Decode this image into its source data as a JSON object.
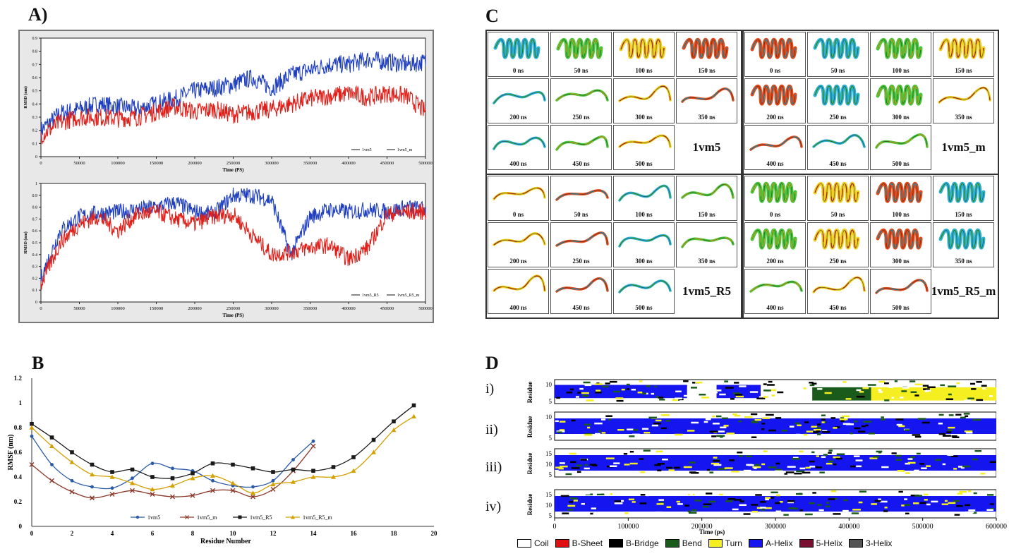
{
  "labels": {
    "A": "A)",
    "B": "B",
    "C": "C",
    "D": "D"
  },
  "colors": {
    "blue": "#1f3fbf",
    "red": "#e0201a",
    "brown": "#8b3a2a",
    "black": "#1a1a1a",
    "gold": "#d4a000",
    "steel": "#2a5aa8"
  },
  "chart_data": [
    {
      "type": "line",
      "title": "",
      "xlabel": "Time (PS)",
      "ylabel": "RMSD (nm)",
      "xlim": [
        0,
        500000
      ],
      "ylim": [
        0,
        0.9
      ],
      "xticks": [
        "0",
        "50000",
        "100000",
        "150000",
        "200000",
        "250000",
        "300000",
        "350000",
        "400000",
        "450000",
        "500000"
      ],
      "yticks": [
        "0",
        "0.1",
        "0.2",
        "0.3",
        "0.4",
        "0.5",
        "0.6",
        "0.7",
        "0.8",
        "0.9"
      ],
      "legend": [
        "1vm5",
        "1vm5_m"
      ],
      "series": [
        {
          "name": "1vm5",
          "x": [
            0,
            25000,
            50000,
            75000,
            100000,
            125000,
            150000,
            175000,
            200000,
            225000,
            250000,
            275000,
            300000,
            325000,
            350000,
            375000,
            400000,
            425000,
            450000,
            475000,
            500000
          ],
          "values": [
            0.2,
            0.33,
            0.36,
            0.4,
            0.38,
            0.36,
            0.4,
            0.44,
            0.5,
            0.52,
            0.55,
            0.6,
            0.52,
            0.62,
            0.66,
            0.7,
            0.7,
            0.74,
            0.72,
            0.7,
            0.72
          ]
        },
        {
          "name": "1vm5_m",
          "x": [
            0,
            25000,
            50000,
            75000,
            100000,
            125000,
            150000,
            175000,
            200000,
            225000,
            250000,
            275000,
            300000,
            325000,
            350000,
            375000,
            400000,
            425000,
            450000,
            475000,
            500000
          ],
          "values": [
            0.16,
            0.26,
            0.3,
            0.3,
            0.29,
            0.3,
            0.34,
            0.38,
            0.34,
            0.36,
            0.32,
            0.34,
            0.36,
            0.4,
            0.44,
            0.46,
            0.48,
            0.45,
            0.48,
            0.46,
            0.34
          ]
        }
      ]
    },
    {
      "type": "line",
      "title": "",
      "xlabel": "Time (PS)",
      "ylabel": "RMSD (nm)",
      "xlim": [
        0,
        500000
      ],
      "ylim": [
        0,
        1.0
      ],
      "xticks": [
        "0",
        "50000",
        "100000",
        "150000",
        "200000",
        "250000",
        "300000",
        "350000",
        "400000",
        "450000",
        "500000"
      ],
      "yticks": [
        "0",
        "0.1",
        "0.2",
        "0.3",
        "0.4",
        "0.5",
        "0.6",
        "0.7",
        "0.8",
        "0.9",
        "1"
      ],
      "legend": [
        "1vm5_R5",
        "1vm5_R5_m"
      ],
      "series": [
        {
          "name": "1vm5_R5",
          "x": [
            0,
            25000,
            50000,
            75000,
            100000,
            125000,
            150000,
            175000,
            200000,
            225000,
            250000,
            275000,
            300000,
            325000,
            350000,
            375000,
            400000,
            425000,
            450000,
            475000,
            500000
          ],
          "values": [
            0.2,
            0.6,
            0.72,
            0.75,
            0.76,
            0.78,
            0.8,
            0.84,
            0.76,
            0.74,
            0.9,
            0.9,
            0.86,
            0.4,
            0.72,
            0.78,
            0.76,
            0.78,
            0.76,
            0.8,
            0.78
          ]
        },
        {
          "name": "1vm5_R5_m",
          "x": [
            0,
            25000,
            50000,
            75000,
            100000,
            125000,
            150000,
            175000,
            200000,
            225000,
            250000,
            275000,
            300000,
            325000,
            350000,
            375000,
            400000,
            425000,
            450000,
            475000,
            500000
          ],
          "values": [
            0.15,
            0.5,
            0.66,
            0.72,
            0.6,
            0.74,
            0.76,
            0.7,
            0.66,
            0.72,
            0.74,
            0.56,
            0.4,
            0.42,
            0.46,
            0.48,
            0.36,
            0.46,
            0.74,
            0.76,
            0.76
          ]
        }
      ]
    },
    {
      "type": "line",
      "title": "",
      "xlabel": "Residue Number",
      "ylabel": "RMSF (nm)",
      "xlim": [
        0,
        20
      ],
      "ylim": [
        0,
        1.2
      ],
      "xticks": [
        "0",
        "2",
        "4",
        "6",
        "8",
        "10",
        "12",
        "14",
        "16",
        "18",
        "20"
      ],
      "yticks": [
        "0",
        "0.2",
        "0.4",
        "0.6",
        "0.8",
        "1",
        "1.2"
      ],
      "legend": [
        "1vm5",
        "1vm5_m",
        "1vm5_R5",
        "1vm5_R5_m"
      ],
      "series": [
        {
          "name": "1vm5",
          "x": [
            0,
            1,
            2,
            3,
            4,
            5,
            6,
            7,
            8,
            9,
            10,
            11,
            12,
            13,
            14
          ],
          "values": [
            0.73,
            0.5,
            0.37,
            0.32,
            0.31,
            0.39,
            0.51,
            0.47,
            0.45,
            0.37,
            0.33,
            0.32,
            0.37,
            0.54,
            0.69
          ]
        },
        {
          "name": "1vm5_m",
          "x": [
            0,
            1,
            2,
            3,
            4,
            5,
            6,
            7,
            8,
            9,
            10,
            11,
            12,
            13,
            14
          ],
          "values": [
            0.5,
            0.37,
            0.28,
            0.23,
            0.26,
            0.29,
            0.26,
            0.24,
            0.25,
            0.29,
            0.29,
            0.24,
            0.3,
            0.45,
            0.65
          ]
        },
        {
          "name": "1vm5_R5",
          "x": [
            0,
            1,
            2,
            3,
            4,
            5,
            6,
            7,
            8,
            9,
            10,
            11,
            12,
            13,
            14,
            15,
            16,
            17,
            18,
            19
          ],
          "values": [
            0.83,
            0.72,
            0.6,
            0.5,
            0.44,
            0.46,
            0.4,
            0.39,
            0.43,
            0.51,
            0.5,
            0.47,
            0.44,
            0.46,
            0.45,
            0.48,
            0.56,
            0.7,
            0.85,
            0.98
          ]
        },
        {
          "name": "1vm5_R5_m",
          "x": [
            0,
            1,
            2,
            3,
            4,
            5,
            6,
            7,
            8,
            9,
            10,
            11,
            12,
            13,
            14,
            15,
            16,
            17,
            18,
            19
          ],
          "values": [
            0.8,
            0.65,
            0.52,
            0.42,
            0.4,
            0.35,
            0.3,
            0.33,
            0.39,
            0.41,
            0.35,
            0.27,
            0.34,
            0.36,
            0.4,
            0.4,
            0.45,
            0.6,
            0.78,
            0.89
          ]
        }
      ]
    },
    {
      "type": "heatmap",
      "title": "",
      "xlabel": "Time (ps)",
      "ylabel": "Residue",
      "xlim": [
        0,
        600000
      ],
      "xticks": [
        "0",
        "100000",
        "200000",
        "300000",
        "400000",
        "500000",
        "600000"
      ],
      "rows": [
        {
          "label": "i)",
          "yticks": [
            "10",
            "5"
          ],
          "segments": [
            [
              "A-Helix",
              0,
              180000
            ],
            [
              "Coil",
              180000,
              220000
            ],
            [
              "A-Helix",
              220000,
              280000
            ],
            [
              "Coil",
              280000,
              350000
            ],
            [
              "Bend",
              350000,
              430000
            ],
            [
              "Turn",
              430000,
              600000
            ]
          ]
        },
        {
          "label": "ii)",
          "yticks": [
            "10",
            "5"
          ],
          "segments": [
            [
              "A-Helix",
              0,
              600000
            ]
          ]
        },
        {
          "label": "iii)",
          "yticks": [
            "15",
            "10",
            "5"
          ],
          "segments": [
            [
              "A-Helix",
              0,
              600000
            ]
          ]
        },
        {
          "label": "iv)",
          "yticks": [
            "15",
            "10",
            "5"
          ],
          "segments": [
            [
              "A-Helix",
              0,
              600000
            ]
          ]
        }
      ],
      "legend": [
        {
          "name": "Coil",
          "color": "#ffffff"
        },
        {
          "name": "B-Sheet",
          "color": "#e01010"
        },
        {
          "name": "B-Bridge",
          "color": "#000000"
        },
        {
          "name": "Bend",
          "color": "#1a5a1a"
        },
        {
          "name": "Turn",
          "color": "#f5ee20"
        },
        {
          "name": "A-Helix",
          "color": "#1515f0"
        },
        {
          "name": "5-Helix",
          "color": "#7a1030"
        },
        {
          "name": "3-Helix",
          "color": "#555555"
        }
      ]
    }
  ],
  "snapshots": {
    "times": [
      "0 ns",
      "50 ns",
      "100 ns",
      "150 ns",
      "200 ns",
      "250 ns",
      "300 ns",
      "350 ns",
      "400 ns",
      "450 ns",
      "500 ns"
    ],
    "systems": [
      "1vm5",
      "1vm5_m",
      "1vm5_R5",
      "1vm5_R5_m"
    ]
  }
}
